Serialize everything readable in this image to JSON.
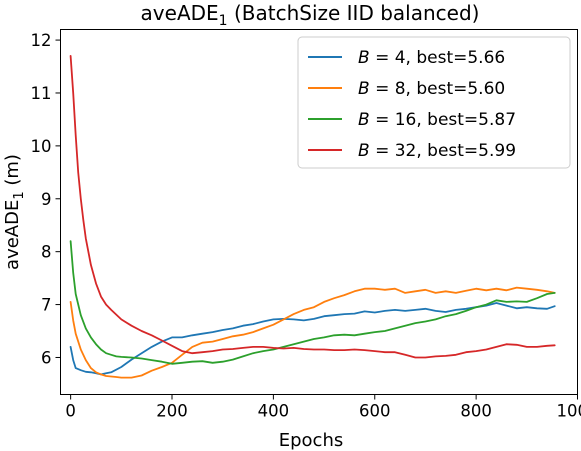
{
  "chart_data": {
    "type": "line",
    "title": "aveADE",
    "title_sub": "1",
    "title_rest": " (BatchSize IID balanced)",
    "xlabel": "Epochs",
    "ylabel": "aveADE",
    "ylabel_sub": "1",
    "ylabel_rest": " (m)",
    "xlim": [
      -20,
      1000
    ],
    "ylim": [
      5.3,
      12.2
    ],
    "xticks": [
      0,
      200,
      400,
      600,
      800,
      1000
    ],
    "yticks": [
      6,
      7,
      8,
      9,
      10,
      11,
      12
    ],
    "legend_placement": "top-right",
    "grid": false,
    "series": [
      {
        "var": "B",
        "label_rest": " = 4, best=5.66",
        "color": "#1f77b4",
        "x": [
          0,
          5,
          10,
          20,
          30,
          40,
          50,
          60,
          70,
          80,
          100,
          120,
          140,
          160,
          180,
          200,
          220,
          240,
          260,
          280,
          300,
          320,
          340,
          360,
          380,
          400,
          420,
          440,
          460,
          480,
          500,
          520,
          540,
          560,
          580,
          600,
          620,
          640,
          660,
          680,
          700,
          720,
          740,
          760,
          780,
          800,
          820,
          840,
          860,
          880,
          900,
          920,
          940,
          955
        ],
        "y": [
          6.2,
          5.95,
          5.8,
          5.76,
          5.73,
          5.72,
          5.7,
          5.68,
          5.7,
          5.72,
          5.82,
          5.96,
          6.08,
          6.2,
          6.3,
          6.38,
          6.38,
          6.42,
          6.45,
          6.48,
          6.52,
          6.55,
          6.6,
          6.63,
          6.68,
          6.72,
          6.73,
          6.72,
          6.7,
          6.73,
          6.78,
          6.8,
          6.82,
          6.83,
          6.87,
          6.85,
          6.88,
          6.9,
          6.88,
          6.9,
          6.92,
          6.88,
          6.86,
          6.9,
          6.92,
          6.95,
          6.98,
          7.03,
          6.98,
          6.93,
          6.95,
          6.93,
          6.92,
          6.97
        ]
      },
      {
        "var": "B",
        "label_rest": " = 8, best=5.60",
        "color": "#ff7f0e",
        "x": [
          0,
          5,
          10,
          20,
          30,
          40,
          50,
          60,
          70,
          80,
          90,
          100,
          120,
          140,
          160,
          180,
          200,
          220,
          240,
          260,
          280,
          300,
          320,
          340,
          360,
          380,
          400,
          420,
          440,
          460,
          480,
          500,
          520,
          540,
          560,
          580,
          600,
          620,
          640,
          660,
          680,
          700,
          720,
          740,
          760,
          780,
          800,
          820,
          840,
          860,
          880,
          900,
          920,
          940,
          955
        ],
        "y": [
          7.05,
          6.7,
          6.45,
          6.15,
          5.95,
          5.8,
          5.72,
          5.68,
          5.65,
          5.64,
          5.63,
          5.62,
          5.62,
          5.66,
          5.75,
          5.82,
          5.9,
          6.05,
          6.2,
          6.28,
          6.3,
          6.35,
          6.4,
          6.43,
          6.48,
          6.55,
          6.62,
          6.72,
          6.82,
          6.9,
          6.95,
          7.05,
          7.12,
          7.18,
          7.25,
          7.3,
          7.3,
          7.28,
          7.3,
          7.22,
          7.25,
          7.28,
          7.22,
          7.25,
          7.22,
          7.26,
          7.3,
          7.27,
          7.3,
          7.27,
          7.32,
          7.3,
          7.28,
          7.25,
          7.22
        ]
      },
      {
        "var": "B",
        "label_rest": " = 16, best=5.87",
        "color": "#2ca02c",
        "x": [
          0,
          5,
          10,
          20,
          30,
          40,
          50,
          60,
          70,
          80,
          90,
          100,
          120,
          140,
          160,
          180,
          200,
          220,
          240,
          260,
          280,
          300,
          320,
          340,
          360,
          380,
          400,
          420,
          440,
          460,
          480,
          500,
          520,
          540,
          560,
          580,
          600,
          620,
          640,
          660,
          680,
          700,
          720,
          740,
          760,
          780,
          800,
          820,
          840,
          860,
          880,
          900,
          920,
          940,
          955
        ],
        "y": [
          8.2,
          7.6,
          7.2,
          6.8,
          6.55,
          6.38,
          6.25,
          6.15,
          6.08,
          6.05,
          6.02,
          6.01,
          6.0,
          5.98,
          5.95,
          5.92,
          5.88,
          5.9,
          5.92,
          5.93,
          5.9,
          5.92,
          5.96,
          6.02,
          6.08,
          6.12,
          6.15,
          6.2,
          6.25,
          6.3,
          6.35,
          6.38,
          6.42,
          6.43,
          6.42,
          6.45,
          6.48,
          6.5,
          6.55,
          6.6,
          6.65,
          6.68,
          6.72,
          6.78,
          6.82,
          6.88,
          6.95,
          7.0,
          7.08,
          7.05,
          7.06,
          7.05,
          7.12,
          7.2,
          7.22
        ]
      },
      {
        "var": "B",
        "label_rest": " = 32, best=5.99",
        "color": "#d62728",
        "x": [
          0,
          5,
          10,
          15,
          20,
          25,
          30,
          40,
          50,
          60,
          70,
          80,
          100,
          120,
          140,
          160,
          180,
          200,
          220,
          240,
          260,
          280,
          300,
          320,
          340,
          360,
          380,
          400,
          420,
          440,
          460,
          480,
          500,
          520,
          540,
          560,
          580,
          600,
          620,
          640,
          660,
          680,
          700,
          720,
          740,
          760,
          780,
          800,
          820,
          840,
          860,
          880,
          900,
          920,
          940,
          955
        ],
        "y": [
          11.7,
          11.0,
          10.2,
          9.5,
          9.0,
          8.6,
          8.25,
          7.75,
          7.4,
          7.15,
          7.0,
          6.9,
          6.72,
          6.6,
          6.5,
          6.42,
          6.32,
          6.22,
          6.12,
          6.08,
          6.1,
          6.12,
          6.15,
          6.16,
          6.18,
          6.2,
          6.2,
          6.18,
          6.17,
          6.18,
          6.16,
          6.15,
          6.15,
          6.14,
          6.14,
          6.15,
          6.14,
          6.12,
          6.1,
          6.1,
          6.05,
          6.0,
          6.0,
          6.02,
          6.03,
          6.05,
          6.1,
          6.12,
          6.15,
          6.2,
          6.25,
          6.24,
          6.2,
          6.2,
          6.22,
          6.23
        ]
      }
    ]
  }
}
